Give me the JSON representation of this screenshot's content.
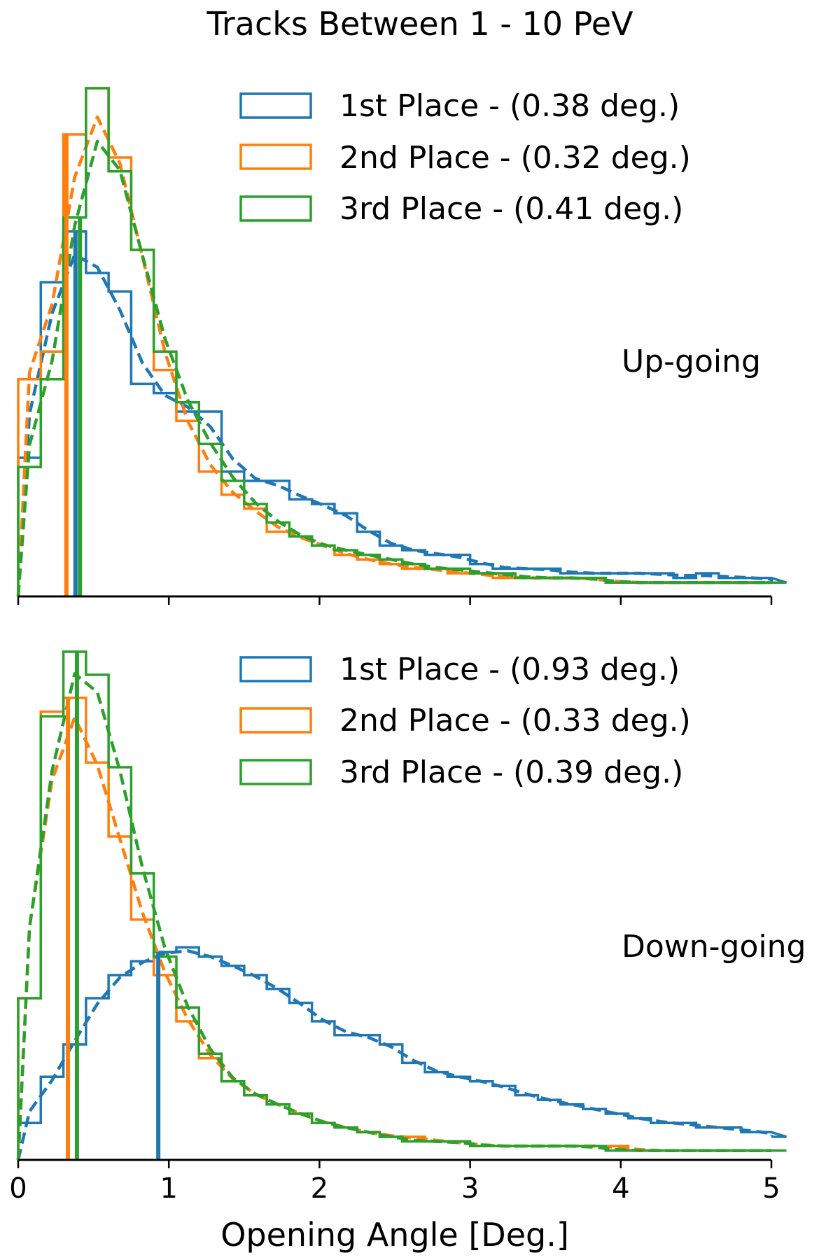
{
  "figure": {
    "title": "Tracks Between 1 - 10 PeV",
    "xlabel": "Opening Angle [Deg.]",
    "x_range": [
      0,
      5
    ],
    "x_ticks": [
      0,
      1,
      2,
      3,
      4,
      5
    ],
    "x_tick_labels": [
      "0",
      "1",
      "2",
      "3",
      "4",
      "5"
    ]
  },
  "colors": {
    "blue": "#1f77b4",
    "orange": "#ff7f0e",
    "green": "#2ca02c"
  },
  "chart_data": [
    {
      "type": "histogram",
      "panel": "top",
      "annotation": "Up-going",
      "xlim": [
        0,
        5
      ],
      "ylim": [
        0,
        1.1
      ],
      "bin_width": 0.15,
      "legend_position": "top-right",
      "series": [
        {
          "name": "1st Place",
          "legend_label": "1st Place - (0.38 deg.)",
          "median": 0.38,
          "color": "#1f77b4",
          "fit": "blue",
          "hist": [
            0.3,
            0.68,
            0.79,
            0.7,
            0.66,
            0.46,
            0.44,
            0.4,
            0.4,
            0.27,
            0.25,
            0.25,
            0.21,
            0.2,
            0.18,
            0.14,
            0.11,
            0.1,
            0.09,
            0.09,
            0.07,
            0.06,
            0.06,
            0.06,
            0.05,
            0.05,
            0.05,
            0.05,
            0.05,
            0.04,
            0.05,
            0.04,
            0.04,
            0.04,
            0.03
          ]
        },
        {
          "name": "2nd Place",
          "legend_label": "2nd Place - (0.32 deg.)",
          "median": 0.32,
          "color": "#ff7f0e",
          "fit": "orange",
          "hist": [
            0.47,
            0.53,
            1.0,
            1.1,
            0.95,
            0.75,
            0.49,
            0.38,
            0.27,
            0.22,
            0.19,
            0.14,
            0.13,
            0.11,
            0.09,
            0.08,
            0.07,
            0.06,
            0.06,
            0.05,
            0.05,
            0.04,
            0.04,
            0.04,
            0.04,
            0.04,
            0.03,
            0.03,
            0.03,
            0.03,
            0.03,
            0.03,
            0.03,
            0.03,
            0.03
          ]
        },
        {
          "name": "3rd Place",
          "legend_label": "3rd Place - (0.41 deg.)",
          "median": 0.41,
          "color": "#2ca02c",
          "fit": "green",
          "hist": [
            0.28,
            0.47,
            0.82,
            1.1,
            0.92,
            0.75,
            0.53,
            0.42,
            0.33,
            0.25,
            0.2,
            0.16,
            0.13,
            0.11,
            0.1,
            0.09,
            0.08,
            0.07,
            0.06,
            0.06,
            0.05,
            0.05,
            0.04,
            0.04,
            0.04,
            0.04,
            0.03,
            0.03,
            0.03,
            0.03,
            0.03,
            0.03,
            0.03,
            0.03,
            0.03
          ]
        }
      ]
    },
    {
      "type": "histogram",
      "panel": "bottom",
      "annotation": "Down-going",
      "xlim": [
        0,
        5
      ],
      "ylim": [
        0,
        1.1
      ],
      "bin_width": 0.15,
      "legend_position": "top-right",
      "series": [
        {
          "name": "1st Place",
          "legend_label": "1st Place - (0.93 deg.)",
          "median": 0.93,
          "color": "#1f77b4",
          "fit": "blue",
          "hist": [
            0.08,
            0.18,
            0.25,
            0.35,
            0.4,
            0.43,
            0.45,
            0.46,
            0.44,
            0.42,
            0.4,
            0.37,
            0.34,
            0.3,
            0.27,
            0.27,
            0.25,
            0.21,
            0.19,
            0.18,
            0.17,
            0.16,
            0.14,
            0.13,
            0.12,
            0.11,
            0.1,
            0.09,
            0.08,
            0.08,
            0.07,
            0.07,
            0.06,
            0.06,
            0.05
          ]
        },
        {
          "name": "2nd Place",
          "legend_label": "2nd Place - (0.33 deg.)",
          "median": 0.33,
          "color": "#ff7f0e",
          "fit": "orange",
          "hist": [
            0.35,
            0.97,
            1.0,
            0.86,
            0.7,
            0.52,
            0.4,
            0.3,
            0.22,
            0.17,
            0.14,
            0.12,
            0.1,
            0.08,
            0.07,
            0.06,
            0.05,
            0.05,
            0.04,
            0.04,
            0.03,
            0.03,
            0.03,
            0.03,
            0.03,
            0.03,
            0.03,
            0.02,
            0.02,
            0.02,
            0.02,
            0.02,
            0.02,
            0.02,
            0.02
          ]
        },
        {
          "name": "3rd Place",
          "legend_label": "3rd Place - (0.39 deg.)",
          "median": 0.39,
          "color": "#2ca02c",
          "fit": "green",
          "hist": [
            0.35,
            0.96,
            1.1,
            1.05,
            0.85,
            0.62,
            0.44,
            0.33,
            0.23,
            0.17,
            0.14,
            0.12,
            0.1,
            0.08,
            0.07,
            0.06,
            0.05,
            0.04,
            0.04,
            0.04,
            0.03,
            0.03,
            0.03,
            0.03,
            0.03,
            0.03,
            0.02,
            0.02,
            0.02,
            0.02,
            0.02,
            0.02,
            0.02,
            0.02,
            0.02
          ]
        }
      ]
    }
  ]
}
